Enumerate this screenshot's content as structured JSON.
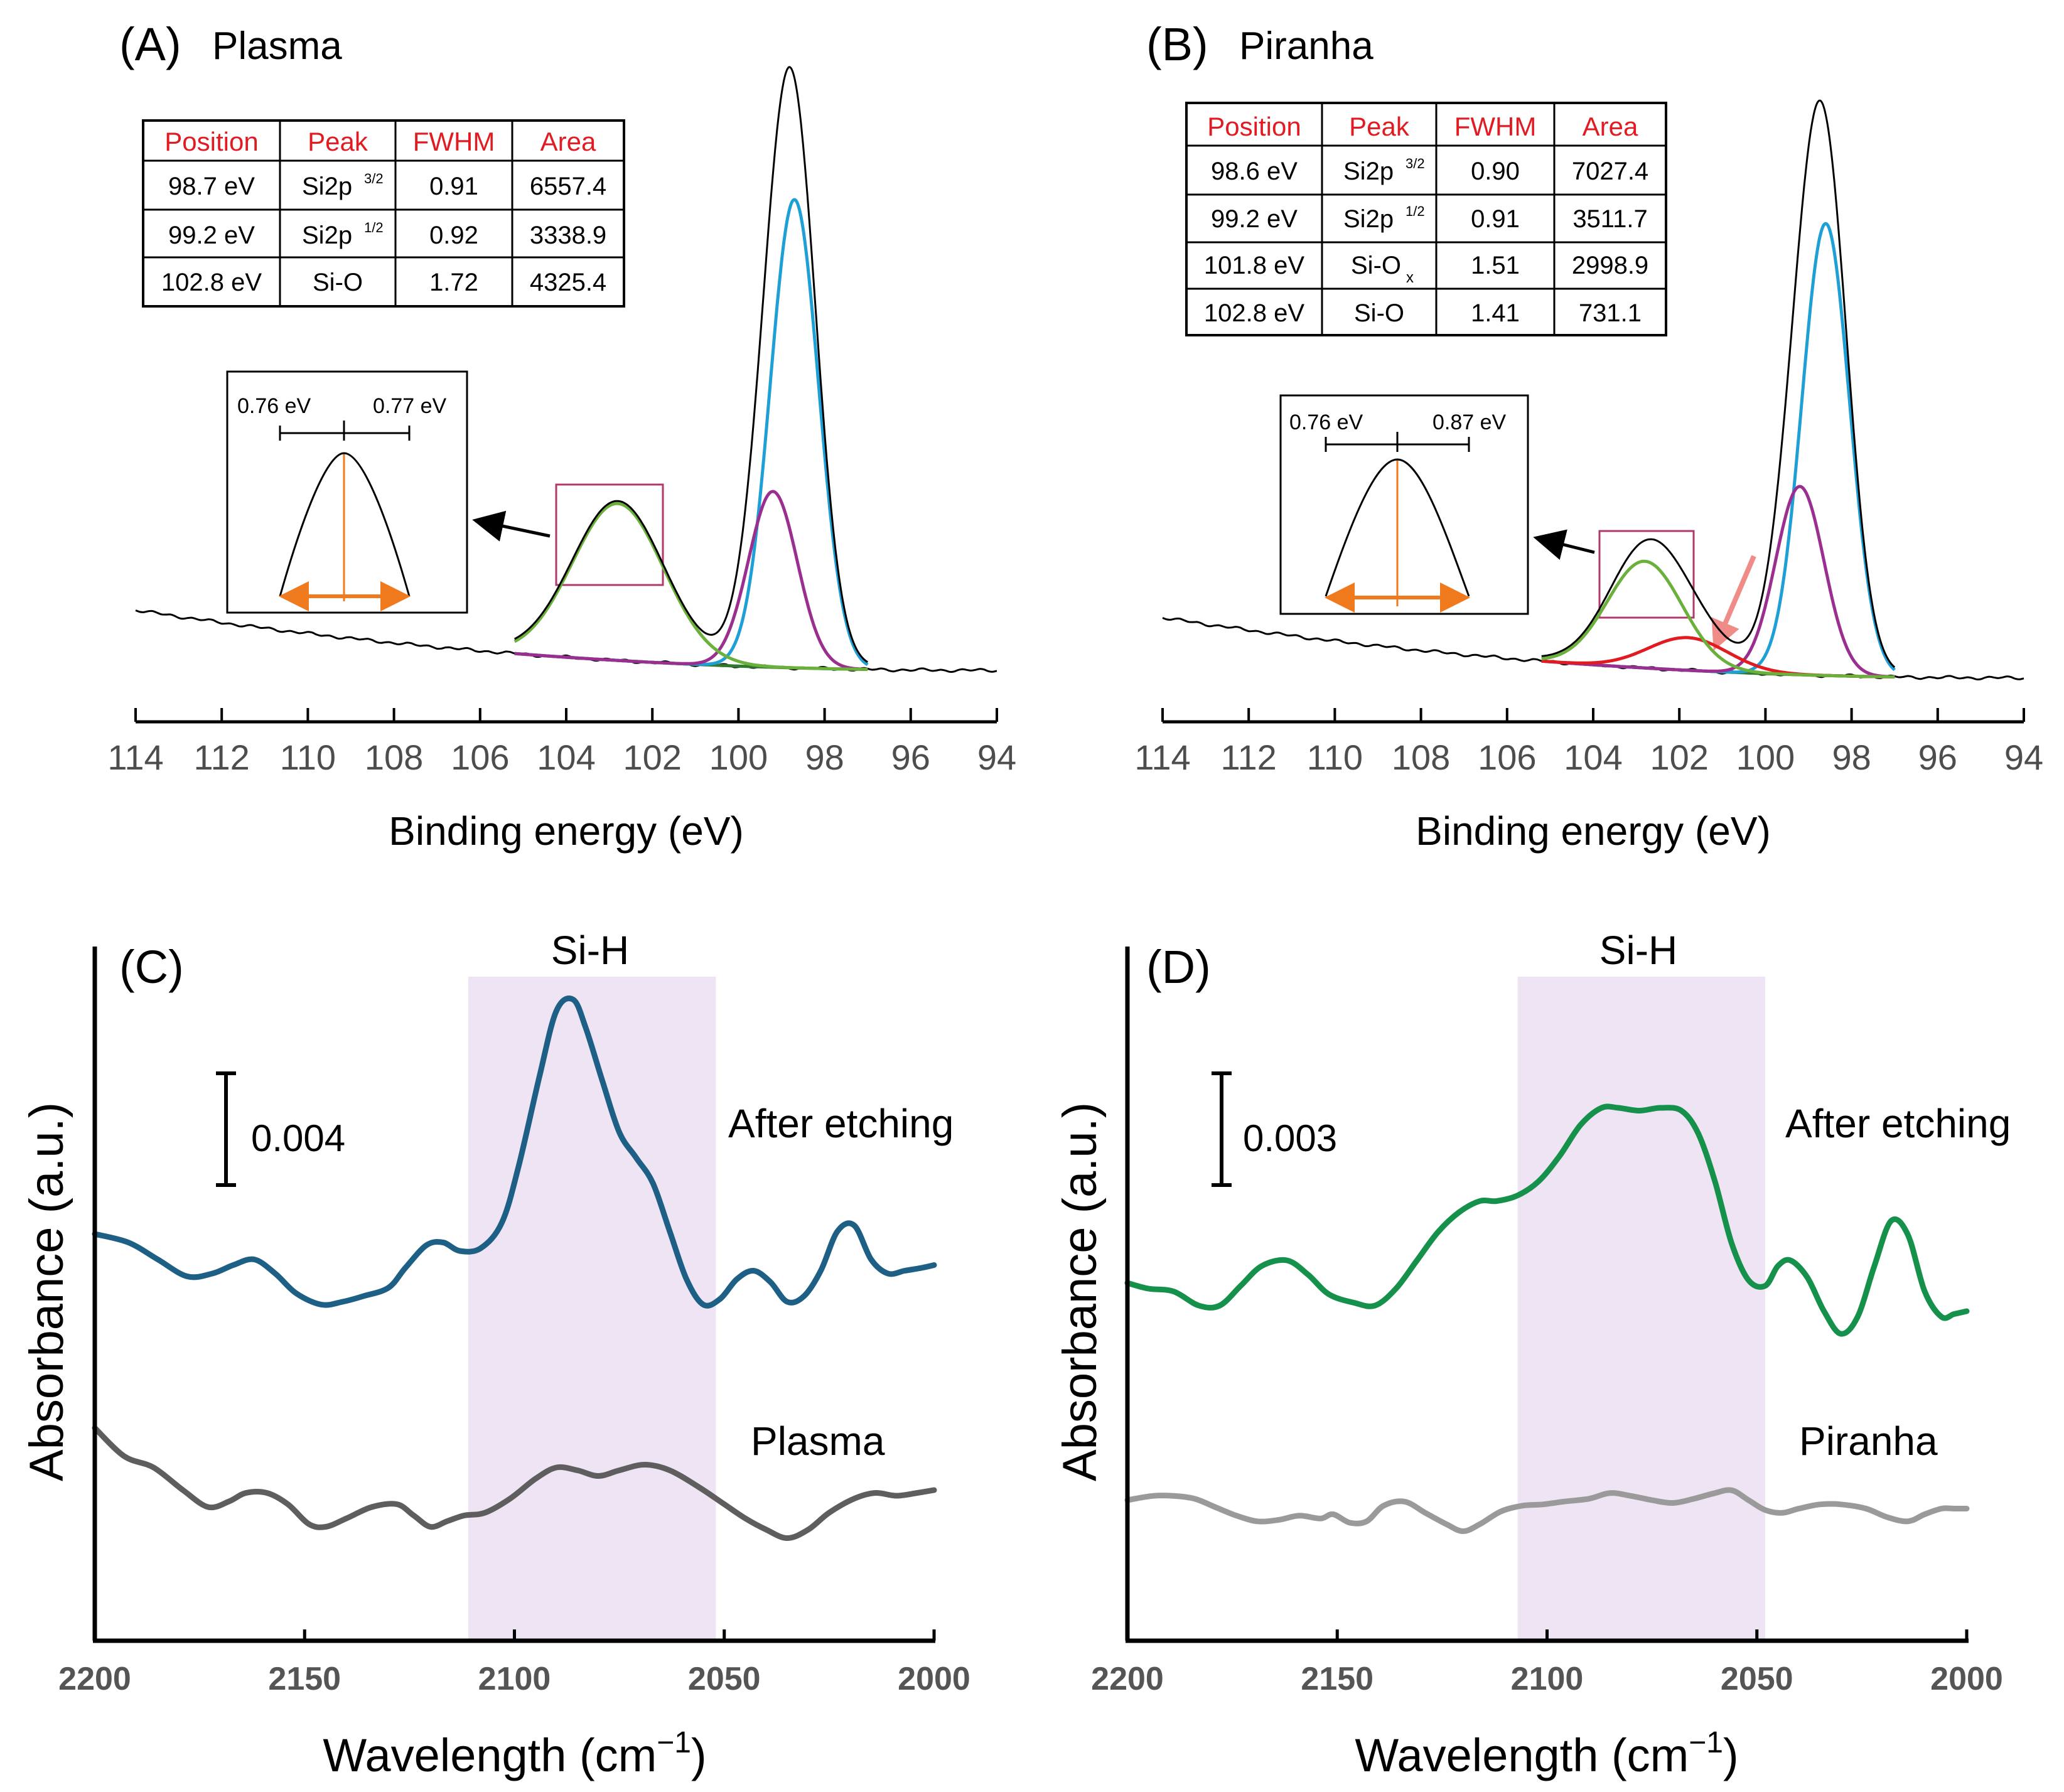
{
  "figure": {
    "description_hidden": ""
  },
  "chart_data": [
    {
      "panel": "A",
      "type": "line",
      "panel_label": "(A)",
      "title": "Plasma",
      "xlabel": "Binding energy (eV)",
      "ylabel": "",
      "x_reversed": true,
      "xlim": [
        114,
        94
      ],
      "x_ticks": [
        "114",
        "112",
        "110",
        "108",
        "106",
        "104",
        "102",
        "100",
        "98",
        "96",
        "94"
      ],
      "series": [
        {
          "name": "Si2p 3/2",
          "center": 98.7,
          "fwhm": 0.91,
          "color": "#1e9fd6"
        },
        {
          "name": "Si2p 1/2",
          "center": 99.2,
          "fwhm": 0.92,
          "color": "#9b2f8f"
        },
        {
          "name": "Si-O",
          "center": 102.8,
          "fwhm": 1.72,
          "color": "#6ab03a"
        },
        {
          "name": "Envelope",
          "color": "#000000"
        }
      ],
      "table": {
        "headers": [
          "Position",
          "Peak",
          "FWHM",
          "Area"
        ],
        "rows": [
          [
            "98.7 eV",
            "Si2p",
            "3/2",
            "0.91",
            "6557.4"
          ],
          [
            "99.2 eV",
            "Si2p",
            "1/2",
            "0.92",
            "3338.9"
          ],
          [
            "102.8 eV",
            "Si-O",
            "",
            "1.72",
            "4325.4"
          ]
        ]
      },
      "inset": {
        "left_width": "0.76 eV",
        "right_width": "0.77 eV"
      }
    },
    {
      "panel": "B",
      "type": "line",
      "panel_label": "(B)",
      "title": "Piranha",
      "xlabel": "Binding energy (eV)",
      "ylabel": "",
      "x_reversed": true,
      "xlim": [
        114,
        94
      ],
      "x_ticks": [
        "114",
        "112",
        "110",
        "108",
        "106",
        "104",
        "102",
        "100",
        "98",
        "96",
        "94"
      ],
      "series": [
        {
          "name": "Si2p 3/2",
          "center": 98.6,
          "fwhm": 0.9,
          "color": "#1e9fd6"
        },
        {
          "name": "Si2p 1/2",
          "center": 99.2,
          "fwhm": 0.91,
          "color": "#9b2f8f"
        },
        {
          "name": "Si-Ox",
          "center": 101.8,
          "fwhm": 1.51,
          "color": "#e11b22"
        },
        {
          "name": "Si-O",
          "center": 102.8,
          "fwhm": 1.41,
          "color": "#6ab03a"
        },
        {
          "name": "Envelope",
          "color": "#000000"
        }
      ],
      "table": {
        "headers": [
          "Position",
          "Peak",
          "FWHM",
          "Area"
        ],
        "rows": [
          [
            "98.6 eV",
            "Si2p",
            "3/2",
            "0.90",
            "7027.4"
          ],
          [
            "99.2 eV",
            "Si2p",
            "1/2",
            "0.91",
            "3511.7"
          ],
          [
            "101.8 eV",
            "Si-O",
            "x",
            "1.51",
            "2998.9"
          ],
          [
            "102.8 eV",
            "Si-O",
            "",
            "1.41",
            "731.1"
          ]
        ]
      },
      "inset": {
        "left_width": "0.76 eV",
        "right_width": "0.87 eV"
      }
    },
    {
      "panel": "C",
      "type": "line",
      "panel_label": "(C)",
      "title": "",
      "xlabel_main": "Wavelength (cm",
      "xlabel_sup": "−1",
      "xlabel_close": ")",
      "ylabel": "Absorbance (a.u.)",
      "x_reversed": true,
      "xlim": [
        2200,
        2000
      ],
      "x_ticks": [
        "2200",
        "2150",
        "2100",
        "2050",
        "2000"
      ],
      "region": {
        "label": "Si-H",
        "from": 2111,
        "to": 2052
      },
      "scale_bar": "0.004",
      "series": [
        {
          "name": "After etching",
          "color": "#1d5f85",
          "x": [
            2200,
            2192,
            2185,
            2178,
            2172,
            2167,
            2162,
            2157,
            2152,
            2146,
            2141,
            2136,
            2130,
            2126,
            2121,
            2117,
            2113,
            2108,
            2103,
            2099,
            2094,
            2090,
            2086,
            2083,
            2079,
            2075,
            2071,
            2067,
            2063,
            2059,
            2055,
            2051,
            2047,
            2043,
            2039,
            2035,
            2031,
            2027,
            2023,
            2019,
            2015,
            2011,
            2007,
            2003,
            2000
          ],
          "y": [
            0.0,
            -0.3,
            -0.9,
            -1.5,
            -1.4,
            -1.1,
            -0.9,
            -1.4,
            -2.1,
            -2.5,
            -2.4,
            -2.2,
            -1.9,
            -1.2,
            -0.4,
            -0.3,
            -0.6,
            -0.5,
            0.4,
            2.4,
            5.6,
            7.9,
            8.3,
            7.3,
            5.4,
            3.6,
            2.7,
            1.8,
            0.1,
            -1.6,
            -2.5,
            -2.3,
            -1.6,
            -1.3,
            -1.7,
            -2.4,
            -2.2,
            -1.3,
            0.1,
            0.3,
            -0.9,
            -1.4,
            -1.3,
            -1.2,
            -1.1
          ]
        },
        {
          "name": "Plasma",
          "color": "#5e5e5e",
          "x": [
            2200,
            2193,
            2186,
            2179,
            2173,
            2168,
            2164,
            2159,
            2154,
            2149,
            2145,
            2140,
            2134,
            2128,
            2124,
            2120,
            2116,
            2112,
            2107,
            2101,
            2095,
            2090,
            2085,
            2080,
            2075,
            2069,
            2063,
            2056,
            2050,
            2045,
            2040,
            2035,
            2030,
            2025,
            2019,
            2014,
            2009,
            2004,
            2000
          ],
          "y": [
            0.0,
            -1.0,
            -1.4,
            -2.2,
            -2.8,
            -2.6,
            -2.3,
            -2.3,
            -2.7,
            -3.4,
            -3.5,
            -3.2,
            -2.8,
            -2.7,
            -3.1,
            -3.5,
            -3.3,
            -3.1,
            -3.0,
            -2.5,
            -1.8,
            -1.4,
            -1.5,
            -1.7,
            -1.5,
            -1.3,
            -1.5,
            -2.1,
            -2.7,
            -3.2,
            -3.6,
            -3.9,
            -3.6,
            -3.0,
            -2.5,
            -2.3,
            -2.4,
            -2.3,
            -2.2
          ]
        }
      ]
    },
    {
      "panel": "D",
      "type": "line",
      "panel_label": "(D)",
      "title": "",
      "xlabel_main": "Wavelength (cm",
      "xlabel_sup": "−1",
      "xlabel_close": ")",
      "ylabel": "Absorbance (a.u.)",
      "x_reversed": true,
      "xlim": [
        2200,
        2000
      ],
      "x_ticks": [
        "2200",
        "2150",
        "2100",
        "2050",
        "2000"
      ],
      "region": {
        "label": "Si-H",
        "from": 2107,
        "to": 2048
      },
      "scale_bar": "0.003",
      "series": [
        {
          "name": "After etching",
          "color": "#15914b",
          "x": [
            2200,
            2195,
            2189,
            2183,
            2178,
            2173,
            2168,
            2162,
            2157,
            2152,
            2146,
            2141,
            2136,
            2131,
            2126,
            2121,
            2116,
            2112,
            2107,
            2102,
            2097,
            2092,
            2087,
            2083,
            2078,
            2073,
            2068,
            2064,
            2060,
            2056,
            2052,
            2048,
            2045,
            2042,
            2038,
            2034,
            2030,
            2026,
            2022,
            2018,
            2014,
            2010,
            2006,
            2003,
            2000
          ],
          "y": [
            0.0,
            -0.2,
            -0.3,
            -0.8,
            -0.8,
            -0.1,
            0.6,
            0.8,
            0.3,
            -0.4,
            -0.7,
            -0.8,
            -0.2,
            0.8,
            1.8,
            2.5,
            2.9,
            2.9,
            3.1,
            3.6,
            4.5,
            5.6,
            6.2,
            6.2,
            6.1,
            6.2,
            6.1,
            5.3,
            3.6,
            1.4,
            0.1,
            -0.1,
            0.6,
            0.8,
            0.2,
            -1.0,
            -1.8,
            -1.2,
            0.6,
            2.2,
            1.7,
            -0.3,
            -1.2,
            -1.1,
            -1.0
          ]
        },
        {
          "name": "Piranha",
          "color": "#9a9a9a",
          "x": [
            2200,
            2194,
            2189,
            2184,
            2179,
            2174,
            2169,
            2164,
            2159,
            2154,
            2151,
            2147,
            2143,
            2139,
            2134,
            2129,
            2124,
            2120,
            2116,
            2111,
            2106,
            2101,
            2096,
            2090,
            2085,
            2080,
            2075,
            2070,
            2065,
            2060,
            2056,
            2052,
            2048,
            2044,
            2040,
            2035,
            2030,
            2024,
            2019,
            2014,
            2010,
            2006,
            2003,
            2000
          ],
          "y": [
            0.0,
            0.15,
            0.15,
            0.05,
            -0.25,
            -0.55,
            -0.75,
            -0.7,
            -0.55,
            -0.65,
            -0.5,
            -0.8,
            -0.75,
            -0.2,
            -0.05,
            -0.45,
            -0.85,
            -1.1,
            -0.85,
            -0.4,
            -0.2,
            -0.15,
            -0.05,
            0.05,
            0.25,
            0.15,
            0.0,
            -0.1,
            0.05,
            0.25,
            0.35,
            0.0,
            -0.35,
            -0.45,
            -0.3,
            -0.15,
            -0.15,
            -0.3,
            -0.6,
            -0.75,
            -0.5,
            -0.3,
            -0.3,
            -0.3
          ]
        }
      ]
    }
  ]
}
